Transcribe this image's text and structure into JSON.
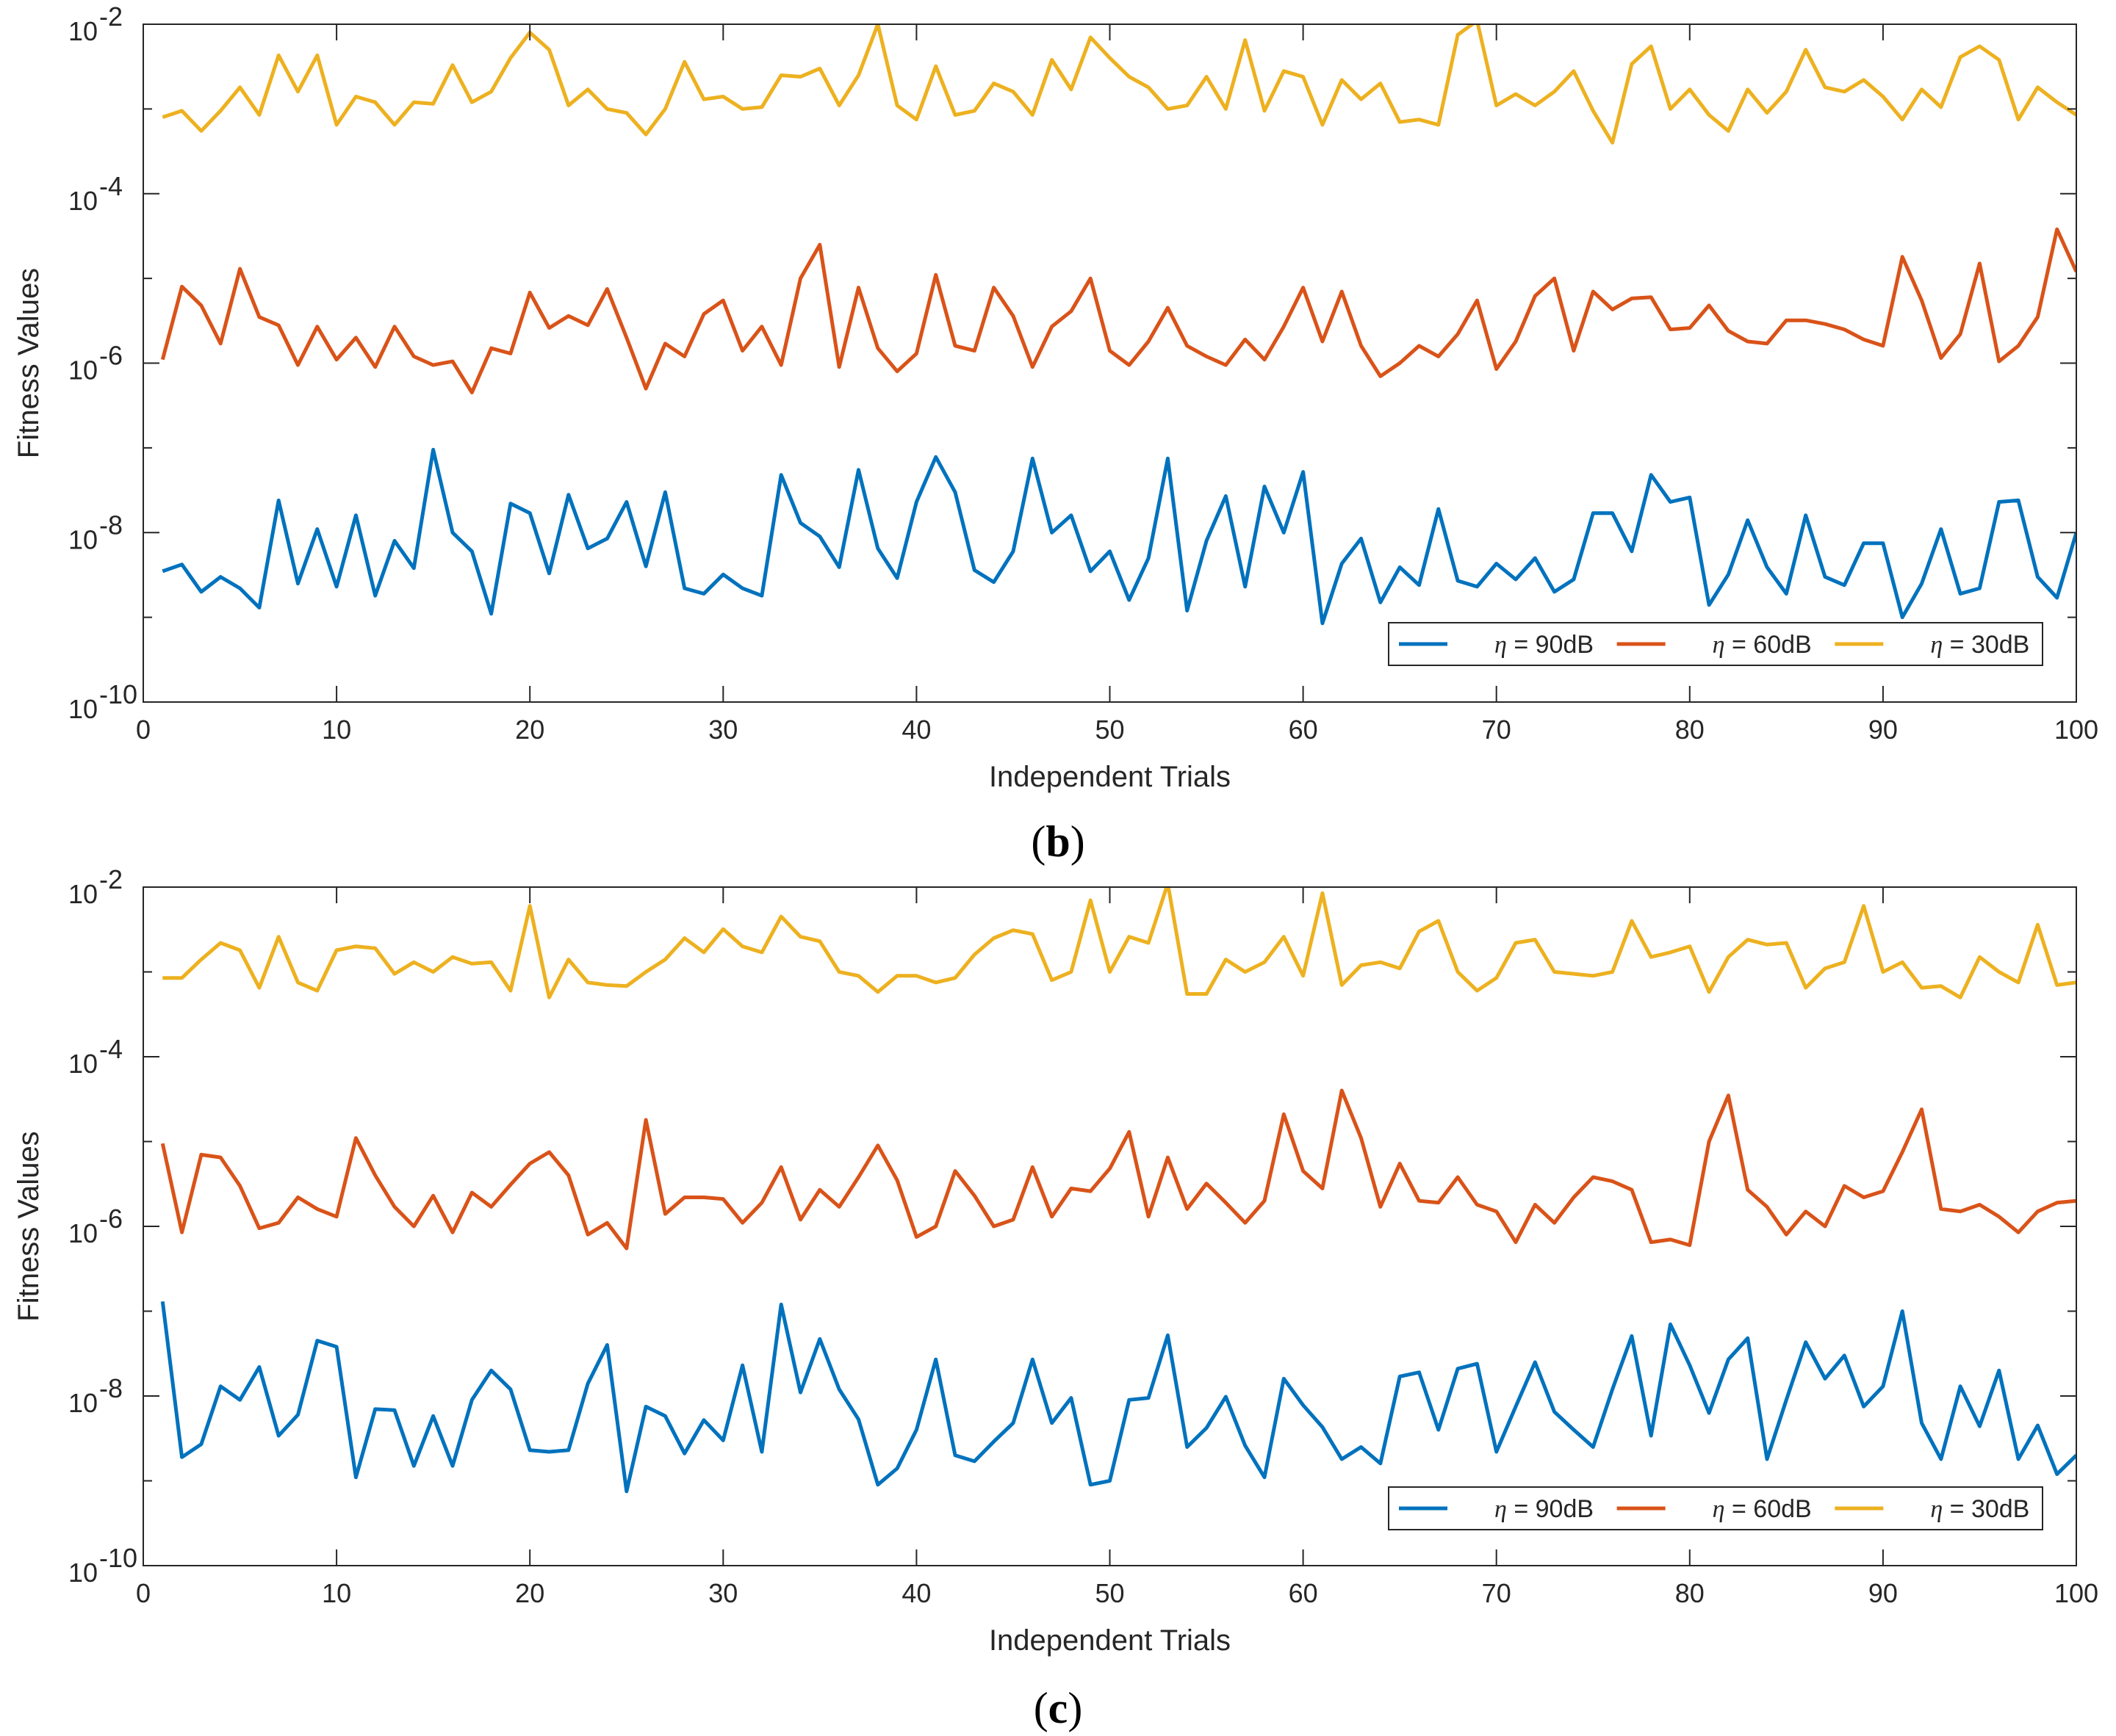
{
  "figure": {
    "panels": [
      {
        "caption_open": "(",
        "caption_letter": "b",
        "caption_close": ")"
      },
      {
        "caption_open": "(",
        "caption_letter": "c",
        "caption_close": ")"
      }
    ]
  },
  "chart_data": [
    {
      "type": "line",
      "title": "",
      "xlabel": "Independent Trials",
      "ylabel": "Fitness Values",
      "yscale": "log",
      "xlim": [
        0,
        100
      ],
      "ylim": [
        1e-10,
        0.01
      ],
      "xticks": [
        0,
        10,
        20,
        30,
        40,
        50,
        60,
        70,
        80,
        90,
        100
      ],
      "xtick_labels": [
        "0",
        "10",
        "20",
        "30",
        "40",
        "50",
        "60",
        "70",
        "80",
        "90",
        "100"
      ],
      "ytick_exponents": [
        -10,
        -8,
        -6,
        -4,
        -2
      ],
      "ytick_base": "10",
      "grid": false,
      "legend_position": "bottom-right",
      "legend_symbol": "η",
      "legend_suffix": " = ",
      "x": [
        1,
        2,
        3,
        4,
        5,
        6,
        7,
        8,
        9,
        10,
        11,
        12,
        13,
        14,
        15,
        16,
        17,
        18,
        19,
        20,
        21,
        22,
        23,
        24,
        25,
        26,
        27,
        28,
        29,
        30,
        31,
        32,
        33,
        34,
        35,
        36,
        37,
        38,
        39,
        40,
        41,
        42,
        43,
        44,
        45,
        46,
        47,
        48,
        49,
        50,
        51,
        52,
        53,
        54,
        55,
        56,
        57,
        58,
        59,
        60,
        61,
        62,
        63,
        64,
        65,
        66,
        67,
        68,
        69,
        70,
        71,
        72,
        73,
        74,
        75,
        76,
        77,
        78,
        79,
        80,
        81,
        82,
        83,
        84,
        85,
        86,
        87,
        88,
        89,
        90,
        91,
        92,
        93,
        94,
        95,
        96,
        97,
        98,
        99,
        100
      ],
      "series": [
        {
          "name": "90dB",
          "color": "#0072BD",
          "values": [
            3.5e-09,
            4.2e-09,
            2e-09,
            3e-09,
            2.2e-09,
            1.3e-09,
            2.4e-08,
            2.5e-09,
            1.1e-08,
            2.3e-09,
            1.6e-08,
            1.8e-09,
            8e-09,
            3.8e-09,
            9.5e-08,
            1e-08,
            6e-09,
            1.1e-09,
            2.2e-08,
            1.7e-08,
            3.3e-09,
            2.8e-08,
            6.5e-09,
            8.5e-09,
            2.3e-08,
            4e-09,
            3e-08,
            2.2e-09,
            1.9e-09,
            3.2e-09,
            2.2e-09,
            1.8e-09,
            4.8e-08,
            1.3e-08,
            9e-09,
            3.9e-09,
            5.5e-08,
            6.5e-09,
            2.9e-09,
            2.3e-08,
            7.8e-08,
            3e-08,
            3.6e-09,
            2.6e-09,
            6e-09,
            7.5e-08,
            1e-08,
            1.6e-08,
            3.5e-09,
            6e-09,
            1.6e-09,
            5e-09,
            7.5e-08,
            1.2e-09,
            8e-09,
            2.7e-08,
            2.3e-09,
            3.5e-08,
            1e-08,
            5.2e-08,
            8.5e-10,
            4.3e-09,
            8.5e-09,
            1.5e-09,
            3.9e-09,
            2.4e-09,
            1.9e-08,
            2.7e-09,
            2.3e-09,
            4.3e-09,
            2.8e-09,
            5e-09,
            2e-09,
            2.8e-09,
            1.7e-08,
            1.7e-08,
            6e-09,
            4.8e-08,
            2.3e-08,
            2.6e-08,
            1.4e-09,
            3.2e-09,
            1.4e-08,
            3.9e-09,
            1.9e-09,
            1.6e-08,
            3e-09,
            2.4e-09,
            7.5e-09,
            7.5e-09,
            1e-09,
            2.5e-09,
            1.1e-08,
            1.9e-09,
            2.2e-09,
            2.3e-08,
            2.4e-08,
            3e-09,
            1.7e-09,
            1e-08
          ]
        },
        {
          "name": "60dB",
          "color": "#D95319",
          "values": [
            1.1e-06,
            8e-06,
            4.8e-06,
            1.7e-06,
            1.3e-05,
            3.5e-06,
            2.8e-06,
            9.5e-07,
            2.7e-06,
            1.1e-06,
            2e-06,
            9e-07,
            2.7e-06,
            1.2e-06,
            9.5e-07,
            1.05e-06,
            4.5e-07,
            1.5e-06,
            1.3e-06,
            6.8e-06,
            2.6e-06,
            3.6e-06,
            2.8e-06,
            7.5e-06,
            2e-06,
            5e-07,
            1.7e-06,
            1.2e-06,
            3.8e-06,
            5.5e-06,
            1.4e-06,
            2.7e-06,
            9.5e-07,
            1e-05,
            2.5e-05,
            9e-07,
            7.8e-06,
            1.5e-06,
            8e-07,
            1.3e-06,
            1.1e-05,
            1.6e-06,
            1.4e-06,
            7.8e-06,
            3.6e-06,
            9e-07,
            2.7e-06,
            4.1e-06,
            1e-05,
            1.4e-06,
            9.5e-07,
            1.8e-06,
            4.5e-06,
            1.6e-06,
            1.2e-06,
            9.5e-07,
            1.9e-06,
            1.1e-06,
            2.7e-06,
            7.8e-06,
            1.8e-06,
            7e-06,
            1.6e-06,
            7e-07,
            1e-06,
            1.6e-06,
            1.2e-06,
            2.2e-06,
            5.5e-06,
            8.5e-07,
            1.8e-06,
            6.2e-06,
            1e-05,
            1.4e-06,
            7e-06,
            4.3e-06,
            5.8e-06,
            6e-06,
            2.5e-06,
            2.6e-06,
            4.8e-06,
            2.4e-06,
            1.8e-06,
            1.7e-06,
            3.2e-06,
            3.2e-06,
            2.9e-06,
            2.5e-06,
            1.9e-06,
            1.6e-06,
            1.8e-05,
            5.5e-06,
            1.15e-06,
            2.2e-06,
            1.5e-05,
            1.05e-06,
            1.6e-06,
            3.5e-06,
            3.8e-05,
            1.2e-05
          ]
        },
        {
          "name": "30dB",
          "color": "#EDB120",
          "values": [
            0.0008,
            0.00095,
            0.00055,
            0.00095,
            0.0018,
            0.00085,
            0.0043,
            0.0016,
            0.0043,
            0.00065,
            0.0014,
            0.0012,
            0.00065,
            0.0012,
            0.00115,
            0.0033,
            0.0012,
            0.0016,
            0.004,
            0.008,
            0.005,
            0.0011,
            0.0017,
            0.001,
            0.0009,
            0.0005,
            0.001,
            0.0036,
            0.0013,
            0.0014,
            0.001,
            0.00105,
            0.0025,
            0.0024,
            0.003,
            0.0011,
            0.0025,
            0.01,
            0.0011,
            0.00075,
            0.0032,
            0.00085,
            0.00095,
            0.002,
            0.0016,
            0.00085,
            0.0038,
            0.0017,
            0.007,
            0.004,
            0.0024,
            0.0018,
            0.001,
            0.0011,
            0.0024,
            0.001,
            0.0065,
            0.00095,
            0.0028,
            0.0024,
            0.00065,
            0.0022,
            0.0013,
            0.002,
            0.0007,
            0.00075,
            0.00065,
            0.0075,
            0.011,
            0.0011,
            0.0015,
            0.0011,
            0.0016,
            0.0028,
            0.00095,
            0.0004,
            0.0034,
            0.0055,
            0.001,
            0.0017,
            0.00085,
            0.00055,
            0.0017,
            0.0009,
            0.0016,
            0.005,
            0.0018,
            0.0016,
            0.0022,
            0.0014,
            0.00075,
            0.0017,
            0.00105,
            0.0041,
            0.0055,
            0.0038,
            0.00075,
            0.0018,
            0.0012,
            0.00085
          ]
        }
      ]
    },
    {
      "type": "line",
      "title": "",
      "xlabel": "Independent Trials",
      "ylabel": "Fitness Values",
      "yscale": "log",
      "xlim": [
        0,
        100
      ],
      "ylim": [
        1e-10,
        0.01
      ],
      "xticks": [
        0,
        10,
        20,
        30,
        40,
        50,
        60,
        70,
        80,
        90,
        100
      ],
      "xtick_labels": [
        "0",
        "10",
        "20",
        "30",
        "40",
        "50",
        "60",
        "70",
        "80",
        "90",
        "100"
      ],
      "ytick_exponents": [
        -10,
        -8,
        -6,
        -4,
        -2
      ],
      "ytick_base": "10",
      "grid": false,
      "legend_position": "bottom-right",
      "legend_symbol": "η",
      "legend_suffix": " = ",
      "x": [
        1,
        2,
        3,
        4,
        5,
        6,
        7,
        8,
        9,
        10,
        11,
        12,
        13,
        14,
        15,
        16,
        17,
        18,
        19,
        20,
        21,
        22,
        23,
        24,
        25,
        26,
        27,
        28,
        29,
        30,
        31,
        32,
        33,
        34,
        35,
        36,
        37,
        38,
        39,
        40,
        41,
        42,
        43,
        44,
        45,
        46,
        47,
        48,
        49,
        50,
        51,
        52,
        53,
        54,
        55,
        56,
        57,
        58,
        59,
        60,
        61,
        62,
        63,
        64,
        65,
        66,
        67,
        68,
        69,
        70,
        71,
        72,
        73,
        74,
        75,
        76,
        77,
        78,
        79,
        80,
        81,
        82,
        83,
        84,
        85,
        86,
        87,
        88,
        89,
        90,
        91,
        92,
        93,
        94,
        95,
        96,
        97,
        98,
        99,
        100
      ],
      "series": [
        {
          "name": "90dB",
          "color": "#0072BD",
          "values": [
            1.3e-07,
            1.9e-09,
            2.7e-09,
            1.3e-08,
            9e-09,
            2.2e-08,
            3.4e-09,
            6e-09,
            4.5e-08,
            3.8e-08,
            1.1e-09,
            7e-09,
            6.8e-09,
            1.5e-09,
            5.8e-09,
            1.5e-09,
            9e-09,
            2e-08,
            1.2e-08,
            2.3e-09,
            2.2e-09,
            2.3e-09,
            1.4e-08,
            4e-08,
            7.5e-10,
            7.5e-09,
            5.8e-09,
            2.1e-09,
            5.2e-09,
            3e-09,
            2.3e-08,
            2.2e-09,
            1.2e-07,
            1.1e-08,
            4.7e-08,
            1.2e-08,
            5.3e-09,
            9e-10,
            1.4e-09,
            4e-09,
            2.7e-08,
            2e-09,
            1.7e-09,
            2.9e-09,
            4.8e-09,
            2.7e-08,
            4.8e-09,
            9.5e-09,
            9e-10,
            1e-09,
            9e-09,
            9.5e-09,
            5.2e-08,
            2.5e-09,
            4.2e-09,
            9.8e-09,
            2.6e-09,
            1.1e-09,
            1.6e-08,
            7.8e-09,
            4.3e-09,
            1.8e-09,
            2.5e-09,
            1.6e-09,
            1.7e-08,
            1.9e-08,
            4e-09,
            2.1e-08,
            2.4e-08,
            2.2e-09,
            7.5e-09,
            2.5e-08,
            6.5e-09,
            4e-09,
            2.5e-09,
            1.2e-08,
            5.1e-08,
            3.4e-09,
            7e-08,
            2.3e-08,
            6.3e-09,
            2.7e-08,
            4.8e-08,
            1.8e-09,
            9e-09,
            4.3e-08,
            1.6e-08,
            3e-08,
            7.5e-09,
            1.3e-08,
            1e-07,
            4.8e-09,
            1.8e-09,
            1.3e-08,
            4.4e-09,
            2e-08,
            1.8e-09,
            4.5e-09,
            1.2e-09,
            2e-09
          ]
        },
        {
          "name": "60dB",
          "color": "#D95319",
          "values": [
            9.5e-06,
            8.5e-07,
            7e-06,
            6.5e-06,
            3e-06,
            9.5e-07,
            1.1e-06,
            2.2e-06,
            1.6e-06,
            1.3e-06,
            1.1e-05,
            4e-06,
            1.7e-06,
            1e-06,
            2.3e-06,
            8.5e-07,
            2.5e-06,
            1.7e-06,
            3.1e-06,
            5.5e-06,
            7.5e-06,
            4e-06,
            8e-07,
            1.1e-06,
            5.5e-07,
            1.8e-05,
            1.4e-06,
            2.2e-06,
            2.2e-06,
            2.1e-06,
            1.1e-06,
            1.9e-06,
            5e-06,
            1.2e-06,
            2.7e-06,
            1.7e-06,
            3.8e-06,
            9e-06,
            3.5e-06,
            7.5e-07,
            1e-06,
            4.5e-06,
            2.3e-06,
            1e-06,
            1.2e-06,
            5e-06,
            1.3e-06,
            2.8e-06,
            2.6e-06,
            4.8e-06,
            1.3e-05,
            1.3e-06,
            6.5e-06,
            1.6e-06,
            3.2e-06,
            1.9e-06,
            1.1e-06,
            2e-06,
            2.1e-05,
            4.5e-06,
            2.8e-06,
            4e-05,
            1.1e-05,
            1.7e-06,
            5.5e-06,
            2e-06,
            1.9e-06,
            3.8e-06,
            1.8e-06,
            1.5e-06,
            6.5e-07,
            1.8e-06,
            1.1e-06,
            2.2e-06,
            3.8e-06,
            3.4e-06,
            2.7e-06,
            6.5e-07,
            7e-07,
            6e-07,
            1e-05,
            3.5e-05,
            2.7e-06,
            1.7e-06,
            8e-07,
            1.5e-06,
            1e-06,
            3e-06,
            2.2e-06,
            2.6e-06,
            7.5e-06,
            2.4e-05,
            1.6e-06,
            1.5e-06,
            1.8e-06,
            1.3e-06,
            8.5e-07,
            1.5e-06,
            1.9e-06,
            2e-06
          ]
        },
        {
          "name": "30dB",
          "color": "#EDB120",
          "values": [
            0.00085,
            0.00085,
            0.0014,
            0.0022,
            0.0018,
            0.00065,
            0.0026,
            0.00075,
            0.0006,
            0.0018,
            0.002,
            0.0019,
            0.00095,
            0.0013,
            0.001,
            0.0015,
            0.00125,
            0.0013,
            0.0006,
            0.006,
            0.0005,
            0.0014,
            0.00075,
            0.0007,
            0.00068,
            0.001,
            0.0014,
            0.0025,
            0.0017,
            0.0032,
            0.002,
            0.0017,
            0.0045,
            0.0026,
            0.0023,
            0.001,
            0.0009,
            0.00058,
            0.0009,
            0.0009,
            0.00075,
            0.00085,
            0.0016,
            0.0025,
            0.0031,
            0.0028,
            0.0008,
            0.001,
            0.007,
            0.001,
            0.0026,
            0.0022,
            0.011,
            0.00055,
            0.00055,
            0.0014,
            0.001,
            0.0013,
            0.0026,
            0.0009,
            0.0085,
            0.0007,
            0.0012,
            0.0013,
            0.0011,
            0.003,
            0.004,
            0.001,
            0.0006,
            0.00085,
            0.0022,
            0.0024,
            0.001,
            0.00095,
            0.0009,
            0.001,
            0.004,
            0.0015,
            0.0017,
            0.002,
            0.00058,
            0.0015,
            0.0024,
            0.0021,
            0.0022,
            0.00065,
            0.0011,
            0.0013,
            0.006,
            0.001,
            0.0013,
            0.00065,
            0.00068,
            0.0005,
            0.0015,
            0.001,
            0.00075,
            0.0036,
            0.0007,
            0.00075
          ]
        }
      ]
    }
  ]
}
